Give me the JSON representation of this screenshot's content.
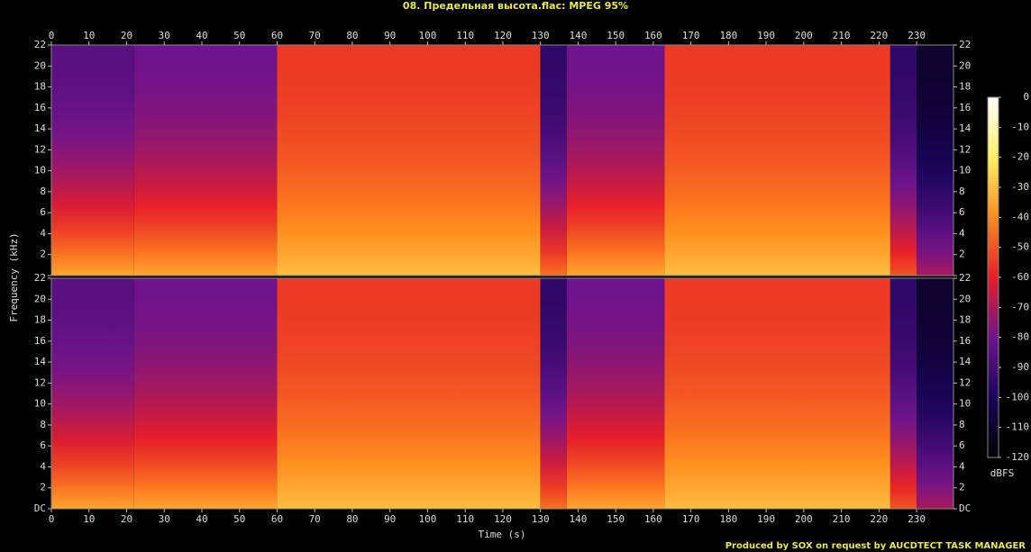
{
  "chart_data": {
    "type": "spectrogram",
    "title": "08. Предельная высота.flac: MPEG 95%",
    "x_label": "Time (s)",
    "y_label": "Frequency (kHz)",
    "xlim": [
      0,
      239.8
    ],
    "xticks": [
      0,
      10,
      20,
      30,
      40,
      50,
      60,
      70,
      80,
      90,
      100,
      110,
      120,
      130,
      140,
      150,
      160,
      170,
      180,
      190,
      200,
      210,
      220,
      230
    ],
    "ylim": [
      0,
      22
    ],
    "yticks": [
      {
        "value": 0,
        "label": "DC"
      },
      2,
      4,
      6,
      8,
      10,
      12,
      14,
      16,
      18,
      20,
      22
    ],
    "colorbar_label": "dBFS",
    "colorbar_lim": [
      -120,
      0
    ],
    "colorbar_ticks": [
      0,
      -10,
      -20,
      -30,
      -40,
      -50,
      -60,
      -70,
      -80,
      -90,
      -100,
      -110,
      -120
    ],
    "segments": [
      {
        "start": 0,
        "end": 22,
        "db_low": -35,
        "db_high": -85
      },
      {
        "start": 22,
        "end": 60,
        "db_low": -35,
        "db_high": -80
      },
      {
        "start": 60,
        "end": 130,
        "db_low": -30,
        "db_high": -55
      },
      {
        "start": 130,
        "end": 137,
        "db_low": -45,
        "db_high": -95
      },
      {
        "start": 137,
        "end": 163,
        "db_low": -35,
        "db_high": -80
      },
      {
        "start": 163,
        "end": 223,
        "db_low": -30,
        "db_high": -55
      },
      {
        "start": 223,
        "end": 230,
        "db_low": -50,
        "db_high": -95
      },
      {
        "start": 230,
        "end": 239.8,
        "db_low": -70,
        "db_high": -110
      }
    ],
    "footer": "Produced by SOX on request by AUCDTECT TASK MANAGER"
  }
}
